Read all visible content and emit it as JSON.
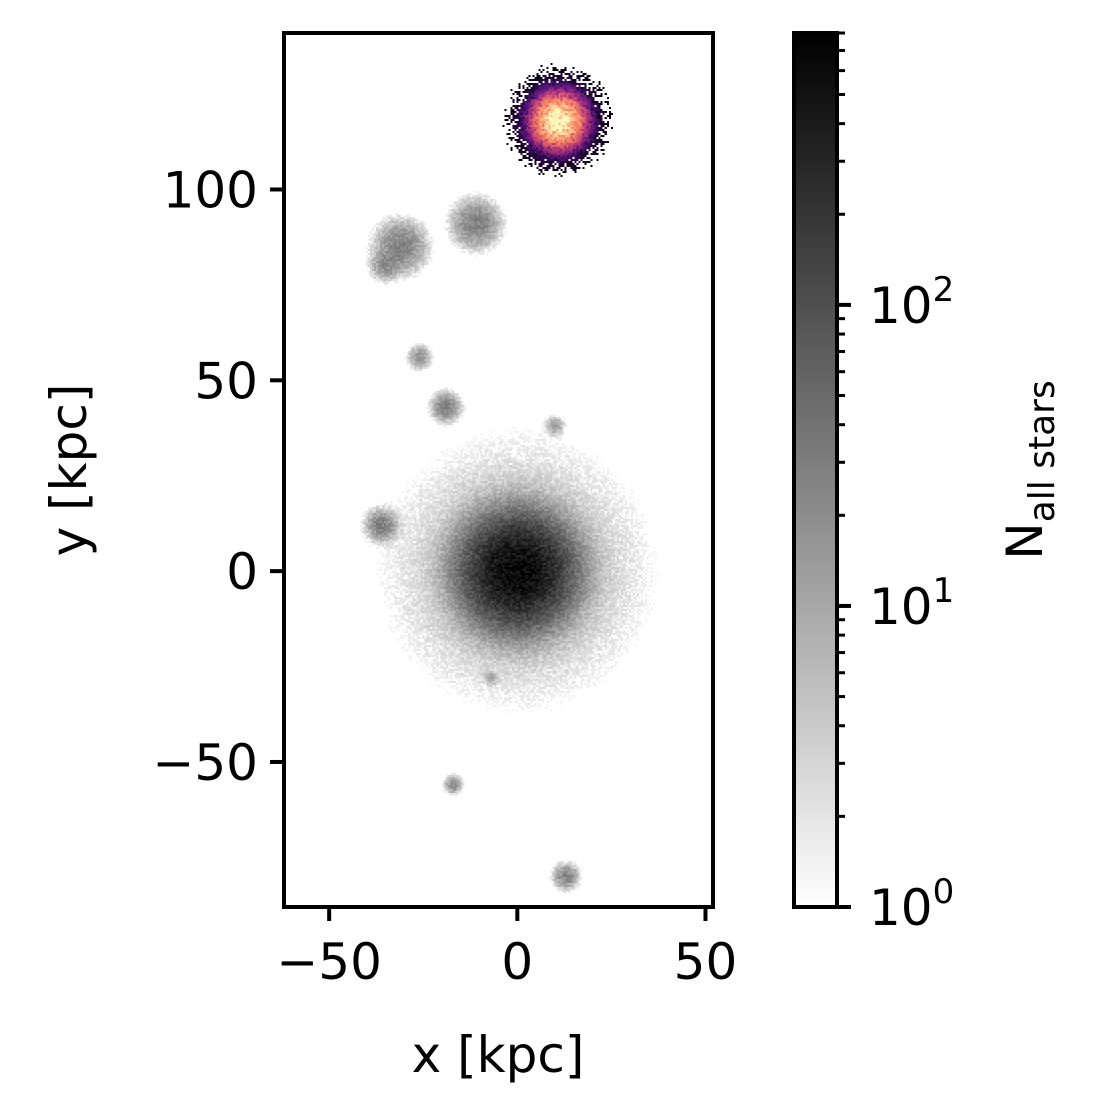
{
  "chart_data": {
    "type": "heatmap",
    "xlabel": "x [kpc]",
    "ylabel": "y [kpc]",
    "xlim": [
      -62,
      52
    ],
    "ylim": [
      -88,
      141
    ],
    "x_ticks": [
      -50,
      0,
      50
    ],
    "y_ticks": [
      -50,
      0,
      50,
      100
    ],
    "x_tick_labels": [
      "−50",
      "0",
      "50"
    ],
    "y_tick_labels": [
      "−50",
      "0",
      "50",
      "100"
    ],
    "grid": false,
    "colorbar": {
      "label_main": "N",
      "label_sub": "all stars",
      "scale": "log",
      "range": [
        1,
        800
      ],
      "major_ticks": [
        1,
        10,
        100
      ],
      "major_tick_base": [
        "10",
        "10",
        "10"
      ],
      "major_tick_exp": [
        "0",
        "1",
        "2"
      ],
      "colormap": "greys",
      "colors": {
        "low": "#ffffff",
        "high": "#000000"
      }
    },
    "overlay_colormap": [
      "#000004",
      "#51127c",
      "#b73779",
      "#fc8961",
      "#fcfdbf"
    ],
    "clumps": [
      {
        "name": "central galaxy",
        "x": 0,
        "y": 0,
        "peak": 700,
        "sigma": 6.5,
        "halo_sigma": 18,
        "halo_peak": 6
      },
      {
        "name": "companion",
        "x": 11,
        "y": 118,
        "peak": 1500,
        "sigma": 2.8,
        "halo_sigma": 9,
        "halo_peak": 3,
        "colormap": "magma"
      },
      {
        "name": "satellite",
        "x": -11,
        "y": 91,
        "peak": 25,
        "sigma": 3.2
      },
      {
        "name": "satellite",
        "x": -31,
        "y": 85,
        "peak": 25,
        "sigma": 3.4
      },
      {
        "name": "satellite",
        "x": -35,
        "y": 80,
        "peak": 15,
        "sigma": 2.0
      },
      {
        "name": "satellite",
        "x": -26,
        "y": 56,
        "peak": 14,
        "sigma": 1.6
      },
      {
        "name": "satellite",
        "x": -19,
        "y": 43,
        "peak": 25,
        "sigma": 1.9
      },
      {
        "name": "satellite",
        "x": 10,
        "y": 38,
        "peak": 12,
        "sigma": 1.2
      },
      {
        "name": "satellite",
        "x": -36,
        "y": 12,
        "peak": 28,
        "sigma": 2.0
      },
      {
        "name": "satellite",
        "x": -7,
        "y": -28,
        "peak": 8,
        "sigma": 1.0
      },
      {
        "name": "satellite",
        "x": -17,
        "y": -56,
        "peak": 18,
        "sigma": 1.2
      },
      {
        "name": "satellite",
        "x": 13,
        "y": -80,
        "peak": 22,
        "sigma": 1.7
      }
    ]
  }
}
